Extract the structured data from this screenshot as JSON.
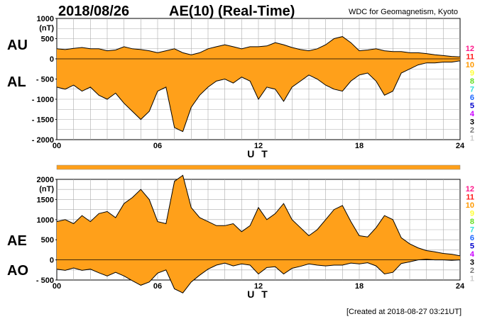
{
  "header": {
    "date": "2018/08/26",
    "title": "AE(10) (Real-Time)",
    "source": "WDC for Geomagnetism, Kyoto"
  },
  "footer": {
    "created": "[Created at 2018-08-27 03:21UT]"
  },
  "colors": {
    "fill": "#ffa01a",
    "line": "#000000",
    "grid": "#aaaaaa",
    "status_bar": "#ffa01a",
    "legend": [
      "#ff1a8c",
      "#ff1a1a",
      "#ff9900",
      "#ffff33",
      "#66dd22",
      "#33dddd",
      "#1a66ff",
      "#0000cc",
      "#cc00ff",
      "#000000",
      "#777777",
      "#cccccc"
    ]
  },
  "legend_items": [
    "12",
    "11",
    "10",
    "9",
    "8",
    "7",
    "6",
    "5",
    "4",
    "3",
    "2",
    "1"
  ],
  "chart_data": [
    {
      "type": "area",
      "panel": "top",
      "series_labels": [
        "AU",
        "AL"
      ],
      "ylabel": "(nT)",
      "xlabel": "U T",
      "xlim": [
        0,
        24
      ],
      "ylim": [
        -2000,
        1000
      ],
      "yticks": [
        1000,
        500,
        0,
        -500,
        -1000,
        -1500,
        -2000
      ],
      "ytick_labels": [
        "1000",
        "500",
        "0",
        "- 500",
        "- 1000",
        "- 1500",
        "- 2000"
      ],
      "xticks": [
        0,
        6,
        12,
        18,
        24
      ],
      "xtick_labels": [
        "00",
        "06",
        "12",
        "18",
        "24"
      ],
      "x": [
        0,
        0.5,
        1,
        1.5,
        2,
        2.5,
        3,
        3.5,
        4,
        4.5,
        5,
        5.5,
        6,
        6.5,
        7,
        7.5,
        8,
        8.5,
        9,
        9.5,
        10,
        10.5,
        11,
        11.5,
        12,
        12.5,
        13,
        13.5,
        14,
        14.5,
        15,
        15.5,
        16,
        16.5,
        17,
        17.5,
        18,
        18.5,
        19,
        19.5,
        20,
        20.5,
        21,
        21.5,
        22,
        22.5,
        23,
        23.5,
        24
      ],
      "series": [
        {
          "name": "AU",
          "values": [
            250,
            230,
            260,
            280,
            250,
            250,
            200,
            220,
            300,
            250,
            230,
            200,
            150,
            200,
            250,
            150,
            100,
            150,
            250,
            300,
            350,
            300,
            250,
            300,
            300,
            320,
            400,
            350,
            280,
            230,
            200,
            250,
            350,
            500,
            550,
            400,
            200,
            220,
            250,
            200,
            180,
            180,
            150,
            150,
            130,
            100,
            80,
            60,
            50
          ]
        },
        {
          "name": "AL",
          "values": [
            -700,
            -750,
            -650,
            -800,
            -700,
            -900,
            -1000,
            -850,
            -1100,
            -1300,
            -1500,
            -1300,
            -800,
            -700,
            -1700,
            -1800,
            -1200,
            -900,
            -700,
            -550,
            -500,
            -600,
            -450,
            -550,
            -1000,
            -700,
            -750,
            -1050,
            -700,
            -550,
            -400,
            -500,
            -650,
            -750,
            -800,
            -550,
            -400,
            -350,
            -550,
            -900,
            -800,
            -350,
            -250,
            -150,
            -100,
            -100,
            -80,
            -80,
            -50
          ]
        }
      ]
    },
    {
      "type": "area",
      "panel": "bottom",
      "series_labels": [
        "AE",
        "AO"
      ],
      "ylabel": "(nT)",
      "xlabel": "U T",
      "xlim": [
        0,
        24
      ],
      "ylim": [
        -500,
        2000
      ],
      "yticks": [
        2000,
        1500,
        1000,
        500,
        0,
        -500
      ],
      "ytick_labels": [
        "2000",
        "1500",
        "1000",
        "500",
        "0",
        "- 500"
      ],
      "xticks": [
        0,
        6,
        12,
        18,
        24
      ],
      "xtick_labels": [
        "00",
        "06",
        "12",
        "18",
        "24"
      ],
      "x": [
        0,
        0.5,
        1,
        1.5,
        2,
        2.5,
        3,
        3.5,
        4,
        4.5,
        5,
        5.5,
        6,
        6.5,
        7,
        7.5,
        8,
        8.5,
        9,
        9.5,
        10,
        10.5,
        11,
        11.5,
        12,
        12.5,
        13,
        13.5,
        14,
        14.5,
        15,
        15.5,
        16,
        16.5,
        17,
        17.5,
        18,
        18.5,
        19,
        19.5,
        20,
        20.5,
        21,
        21.5,
        22,
        22.5,
        23,
        23.5,
        24
      ],
      "series": [
        {
          "name": "AE",
          "values": [
            950,
            1000,
            900,
            1100,
            950,
            1150,
            1200,
            1050,
            1400,
            1550,
            1750,
            1500,
            950,
            900,
            1950,
            2100,
            1300,
            1050,
            950,
            850,
            850,
            900,
            700,
            850,
            1300,
            1000,
            1150,
            1400,
            1000,
            800,
            600,
            750,
            1000,
            1250,
            1350,
            950,
            600,
            570,
            800,
            1100,
            1000,
            550,
            400,
            300,
            230,
            200,
            160,
            140,
            100
          ]
        },
        {
          "name": "AO",
          "values": [
            -230,
            -260,
            -200,
            -260,
            -230,
            -320,
            -400,
            -310,
            -400,
            -520,
            -630,
            -550,
            -330,
            -250,
            -720,
            -820,
            -550,
            -380,
            -230,
            -130,
            -80,
            -150,
            -100,
            -130,
            -350,
            -190,
            -170,
            -350,
            -210,
            -160,
            -100,
            -130,
            -150,
            -130,
            -130,
            -80,
            -100,
            -70,
            -150,
            -350,
            -310,
            -90,
            -50,
            0,
            15,
            0,
            0,
            -10,
            0
          ]
        }
      ]
    }
  ]
}
